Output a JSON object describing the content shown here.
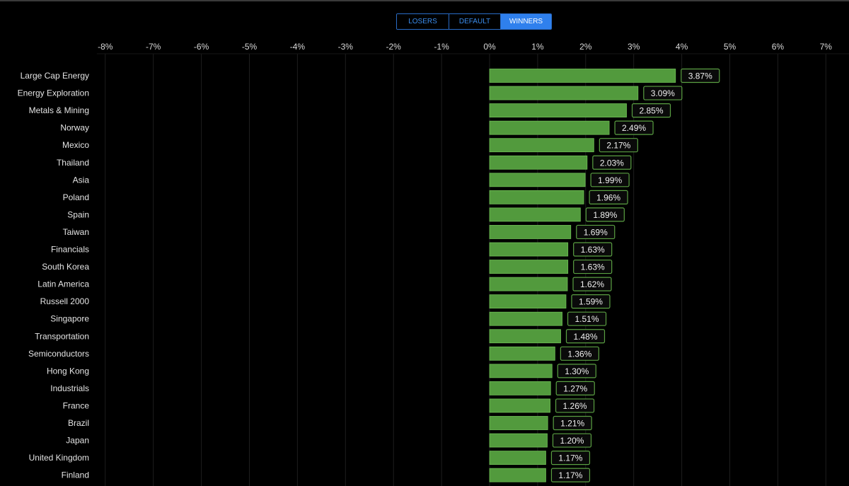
{
  "toggle": {
    "options": [
      {
        "label": "LOSERS",
        "active": false
      },
      {
        "label": "DEFAULT",
        "active": false
      },
      {
        "label": "WINNERS",
        "active": true
      }
    ]
  },
  "colors": {
    "bar_fill": "#529a3d",
    "bar_stroke": "#6fbf55",
    "label_box_stroke": "#5aa042",
    "label_box_fill": "#0a0a0a",
    "grid": "#1e1e1e",
    "accent": "#2f80ed"
  },
  "chart_data": {
    "type": "bar",
    "orientation": "horizontal",
    "title": "",
    "xlabel": "",
    "ylabel": "",
    "xlim": [
      -8,
      7
    ],
    "x_ticks": [
      "-8%",
      "-7%",
      "-6%",
      "-5%",
      "-4%",
      "-3%",
      "-2%",
      "-1%",
      "0%",
      "1%",
      "2%",
      "3%",
      "4%",
      "5%",
      "6%",
      "7%"
    ],
    "x_tick_values": [
      -8,
      -7,
      -6,
      -5,
      -4,
      -3,
      -2,
      -1,
      0,
      1,
      2,
      3,
      4,
      5,
      6,
      7
    ],
    "grid": true,
    "categories": [
      "Large Cap Energy",
      "Energy Exploration",
      "Metals & Mining",
      "Norway",
      "Mexico",
      "Thailand",
      "Asia",
      "Poland",
      "Spain",
      "Taiwan",
      "Financials",
      "South Korea",
      "Latin America",
      "Russell 2000",
      "Singapore",
      "Transportation",
      "Semiconductors",
      "Hong Kong",
      "Industrials",
      "France",
      "Brazil",
      "Japan",
      "United Kingdom",
      "Finland"
    ],
    "values": [
      3.87,
      3.09,
      2.85,
      2.49,
      2.17,
      2.03,
      1.99,
      1.96,
      1.89,
      1.69,
      1.63,
      1.63,
      1.62,
      1.59,
      1.51,
      1.48,
      1.36,
      1.3,
      1.27,
      1.26,
      1.21,
      1.2,
      1.17,
      1.17
    ],
    "value_labels": [
      "3.87%",
      "3.09%",
      "2.85%",
      "2.49%",
      "2.17%",
      "2.03%",
      "1.99%",
      "1.96%",
      "1.89%",
      "1.69%",
      "1.63%",
      "1.63%",
      "1.62%",
      "1.59%",
      "1.51%",
      "1.48%",
      "1.36%",
      "1.30%",
      "1.27%",
      "1.26%",
      "1.21%",
      "1.20%",
      "1.17%",
      "1.17%"
    ]
  }
}
